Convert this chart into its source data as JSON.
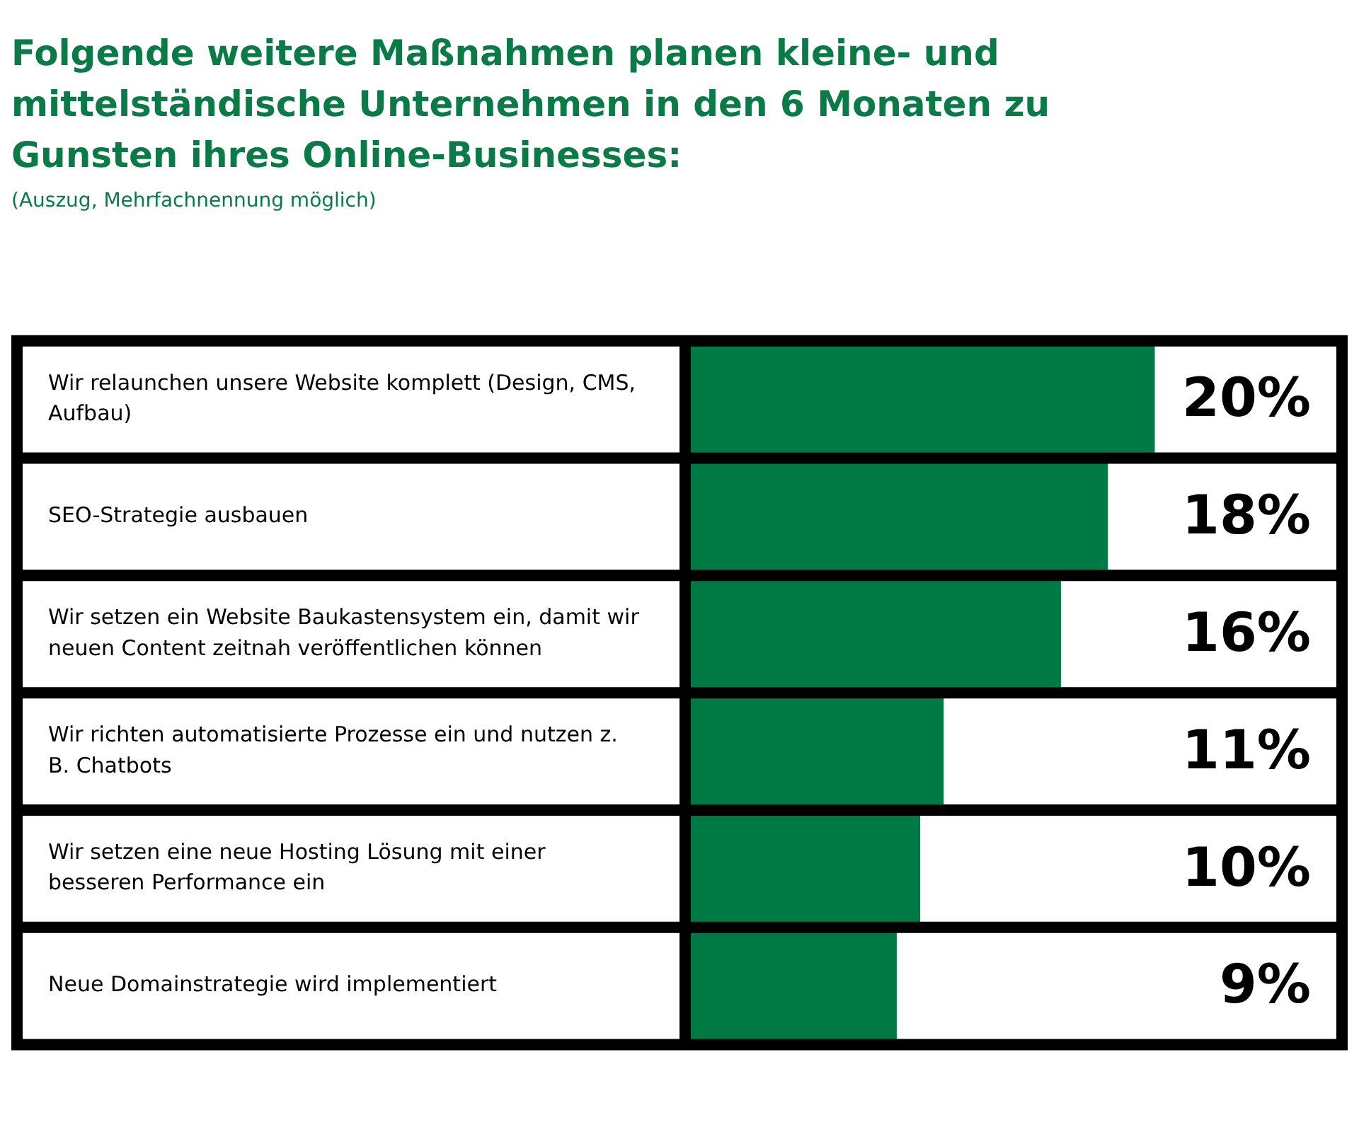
{
  "chart_data": {
    "type": "bar",
    "orientation": "horizontal",
    "title": "Folgende weitere Maßnahmen planen kleine- und mittelständische Unternehmen in den 6 Monaten zu Gunsten ihres Online-Businesses:",
    "subtitle": "(Auszug, Mehrfachnennung möglich)",
    "categories": [
      "Wir relaunchen unsere Website komplett (Design, CMS, Aufbau)",
      "SEO-Strategie ausbauen",
      "Wir setzen ein Website Baukastensystem ein, damit wir neuen Content zeitnah veröffentlichen können",
      "Wir richten automatisierte Prozesse ein und nutzen z. B. Chatbots",
      "Wir setzen eine neue Hosting Lösung mit einer besseren Performance ein",
      "Neue Domainstrategie wird implementiert"
    ],
    "values": [
      20,
      18,
      16,
      11,
      10,
      9
    ],
    "value_labels": [
      "20%",
      "18%",
      "16%",
      "11%",
      "10%",
      "9%"
    ],
    "color": "#007a45",
    "xlim": [
      0,
      28
    ],
    "tick_labels": "y",
    "legend": false
  }
}
